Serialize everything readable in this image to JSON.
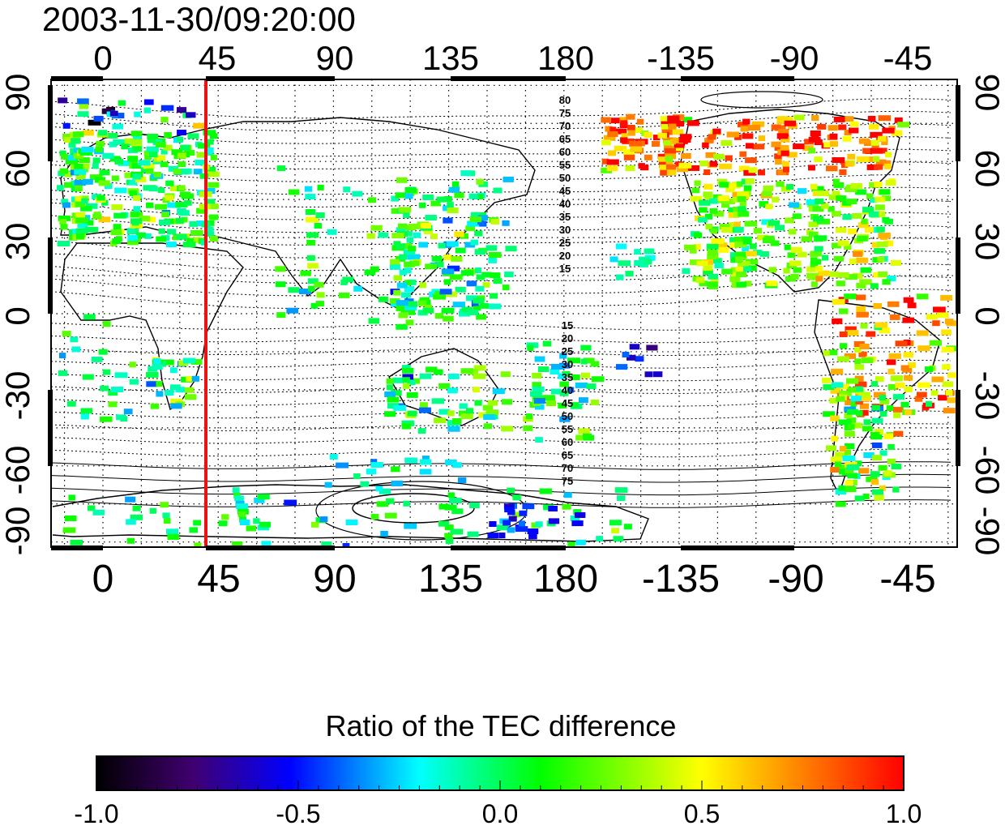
{
  "timestamp": "2003-11-30/09:20:00",
  "lon_tick_labels": [
    "0",
    "45",
    "90",
    "135",
    "180",
    "-135",
    "-90",
    "-45"
  ],
  "lat_tick_labels": [
    "90",
    "60",
    "30",
    "0",
    "-30",
    "-60",
    "-90"
  ],
  "contour_labels_north": [
    "80",
    "75",
    "70",
    "65",
    "60",
    "55",
    "50",
    "45",
    "40",
    "35",
    "30",
    "25",
    "20",
    "15"
  ],
  "contour_labels_south": [
    "15",
    "20",
    "25",
    "30",
    "35",
    "40",
    "45",
    "50",
    "55",
    "60",
    "65",
    "70",
    "75"
  ],
  "marker_line": {
    "longitude": 40,
    "color": "#ee1111"
  },
  "colorbar": {
    "title": "Ratio of the TEC difference",
    "tick_labels": [
      "-1.0",
      "-0.5",
      "0.0",
      "0.5",
      "1.0"
    ],
    "range": [
      -1.0,
      1.0
    ],
    "stops": [
      "#000000",
      "#400070",
      "#0000ff",
      "#00ffff",
      "#00ff00",
      "#ffff00",
      "#ff0000"
    ]
  }
}
